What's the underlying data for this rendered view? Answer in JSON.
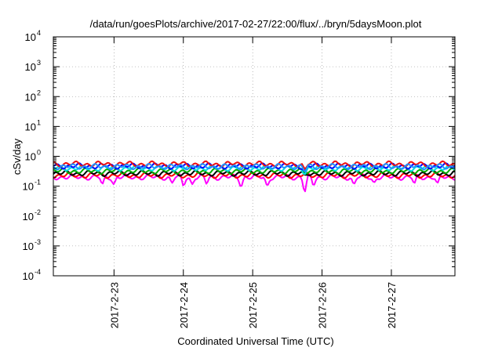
{
  "chart_data": {
    "type": "line",
    "title": "/data/run/goesPlots/archive/2017-02-27/22:00/flux/../bryn/5daysMoon.plot",
    "xlabel": "Coordinated Universal Time (UTC)",
    "ylabel": "cSv/day",
    "y_scale": "log",
    "ylim": [
      0.0001,
      10000
    ],
    "y_ticks": [
      {
        "value": 0.0001,
        "base": "10",
        "exp": "-4"
      },
      {
        "value": 0.001,
        "base": "10",
        "exp": "-3"
      },
      {
        "value": 0.01,
        "base": "10",
        "exp": "-2"
      },
      {
        "value": 0.1,
        "base": "10",
        "exp": "-1"
      },
      {
        "value": 1,
        "base": "10",
        "exp": "0"
      },
      {
        "value": 10,
        "base": "10",
        "exp": "1"
      },
      {
        "value": 100,
        "base": "10",
        "exp": "2"
      },
      {
        "value": 1000,
        "base": "10",
        "exp": "3"
      },
      {
        "value": 10000,
        "base": "10",
        "exp": "4"
      }
    ],
    "xlim": [
      "2017-02-22T03:00",
      "2017-02-27T22:00"
    ],
    "x_ticks": [
      {
        "value": "2017-02-23T00:00",
        "label": "2017-2-23"
      },
      {
        "value": "2017-02-24T00:00",
        "label": "2017-2-24"
      },
      {
        "value": "2017-02-25T00:00",
        "label": "2017-2-25"
      },
      {
        "value": "2017-02-26T00:00",
        "label": "2017-2-26"
      },
      {
        "value": "2017-02-27T00:00",
        "label": "2017-2-27"
      }
    ],
    "grid": "dotted at major ticks",
    "legend": "none",
    "series": [
      {
        "color": "#ff00ff",
        "baseline": 0.2,
        "dips": [
          {
            "x": "2017-02-22T20:00",
            "y": 0.1
          },
          {
            "x": "2017-02-23T00:00",
            "y": 0.11
          },
          {
            "x": "2017-02-23T20:00",
            "y": 0.12
          },
          {
            "x": "2017-02-24T00:00",
            "y": 0.1
          },
          {
            "x": "2017-02-24T03:00",
            "y": 0.11
          },
          {
            "x": "2017-02-24T08:00",
            "y": 0.12
          },
          {
            "x": "2017-02-24T20:00",
            "y": 0.1
          },
          {
            "x": "2017-02-25T05:00",
            "y": 0.09
          },
          {
            "x": "2017-02-25T18:00",
            "y": 0.06
          },
          {
            "x": "2017-02-25T21:00",
            "y": 0.1
          },
          {
            "x": "2017-02-26T11:00",
            "y": 0.1
          },
          {
            "x": "2017-02-26T18:00",
            "y": 0.12
          },
          {
            "x": "2017-02-27T08:00",
            "y": 0.11
          },
          {
            "x": "2017-02-27T16:00",
            "y": 0.1
          }
        ]
      },
      {
        "color": "#ff0000",
        "baseline": 0.23,
        "dips": []
      },
      {
        "color": "#000000",
        "baseline": 0.27,
        "dips": [
          {
            "x": "2017-02-25T18:00",
            "y": 0.2
          }
        ]
      },
      {
        "color": "#00aa00",
        "baseline": 0.32,
        "dips": []
      },
      {
        "color": "#00e0e0",
        "baseline": 0.4,
        "dips": [
          {
            "x": "2017-02-25T18:00",
            "y": 0.28
          }
        ]
      },
      {
        "color": "#0000ff",
        "baseline": 0.47,
        "dips": [
          {
            "x": "2017-02-25T18:00",
            "y": 0.3
          }
        ]
      },
      {
        "color": "#ee1111",
        "baseline": 0.55,
        "dips": [
          {
            "x": "2017-02-25T18:00",
            "y": 0.33
          }
        ]
      },
      {
        "color": "#1e90ff",
        "baseline": 0.45,
        "dips": [
          {
            "x": "2017-02-25T18:00",
            "y": 0.3
          }
        ]
      }
    ]
  }
}
